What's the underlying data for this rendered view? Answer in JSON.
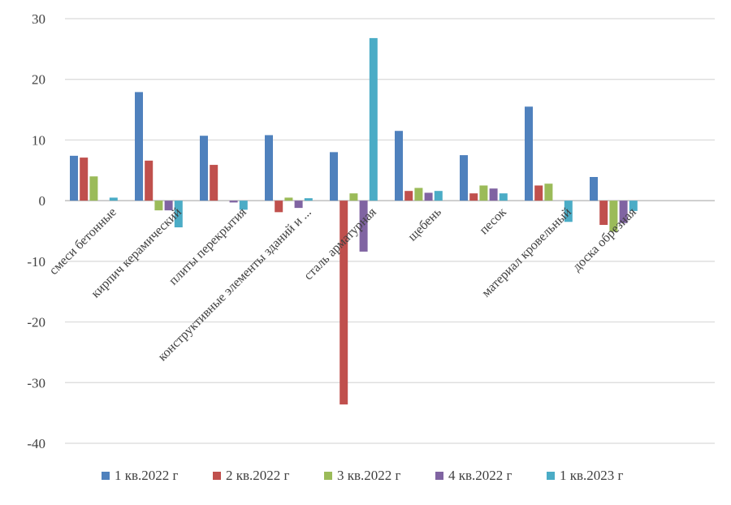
{
  "chart_data": {
    "type": "bar",
    "title": "",
    "xlabel": "",
    "ylabel": "",
    "ylim": [
      -40,
      30
    ],
    "yticks": [
      30,
      20,
      10,
      0,
      -10,
      -20,
      -30,
      -40
    ],
    "grid": true,
    "legend_position": "bottom",
    "categories": [
      "смеси бетонные",
      "кирпич керамический",
      "плиты перекрытия",
      "конструктивные элементы зданий и ...",
      "сталь арматурная",
      "щебень",
      "песок",
      "материал кровельный",
      "доска обрезная",
      ""
    ],
    "series": [
      {
        "name": "1 кв.2022 г",
        "color": "#4f81bd",
        "values": [
          7.4,
          17.9,
          10.7,
          10.8,
          8.0,
          11.5,
          7.5,
          15.5,
          3.9,
          null
        ]
      },
      {
        "name": "2 кв.2022 г",
        "color": "#c0504d",
        "values": [
          7.1,
          6.6,
          5.9,
          -1.9,
          -33.6,
          1.6,
          1.2,
          2.5,
          -4.0,
          null
        ]
      },
      {
        "name": "3 кв.2022 г",
        "color": "#9bbb59",
        "values": [
          4.0,
          -1.6,
          0,
          0.5,
          1.2,
          2.1,
          2.5,
          2.8,
          -5.1,
          null
        ]
      },
      {
        "name": "4 кв.2022 г",
        "color": "#8064a2",
        "values": [
          0,
          -1.6,
          -0.3,
          -1.2,
          -8.4,
          1.3,
          2.0,
          0,
          -3.7,
          null
        ]
      },
      {
        "name": "1 кв.2023 г",
        "color": "#4bacc6",
        "values": [
          0.5,
          -4.4,
          -1.5,
          0.4,
          26.8,
          1.6,
          1.2,
          -3.5,
          -1.7,
          null
        ]
      }
    ]
  }
}
